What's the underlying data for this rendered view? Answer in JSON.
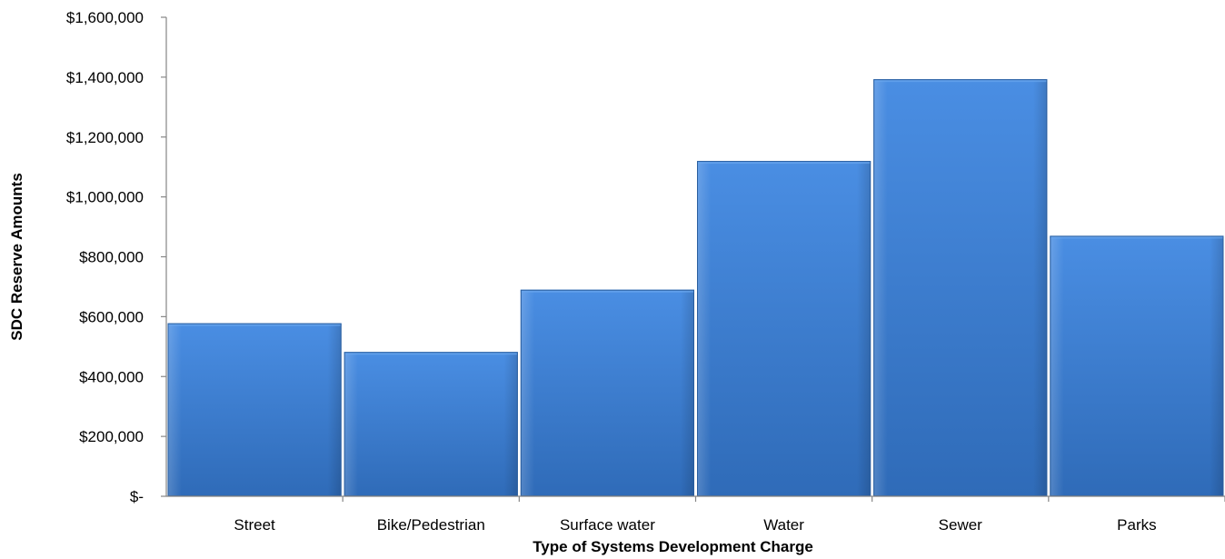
{
  "chart_data": {
    "type": "bar",
    "title": "",
    "xlabel": "Type of Systems Development Charge",
    "ylabel": "SDC Reserve Amounts",
    "categories": [
      "Street",
      "Bike/Pedestrian",
      "Surface water",
      "Water",
      "Sewer",
      "Parks"
    ],
    "series": [
      {
        "values": [
          578000,
          482000,
          690000,
          1120000,
          1393000,
          870000
        ]
      }
    ],
    "ylim": [
      0,
      1600000
    ],
    "ytick_values": [
      0,
      200000,
      400000,
      600000,
      800000,
      1000000,
      1200000,
      1400000,
      1600000
    ],
    "ytick_labels": [
      "$-",
      "$200,000",
      "$400,000",
      "$600,000",
      "$800,000",
      "$1,000,000",
      "$1,200,000",
      "$1,400,000",
      "$1,600,000"
    ],
    "grid": false,
    "legend": "none",
    "bar_color": "#3a7fd5"
  }
}
